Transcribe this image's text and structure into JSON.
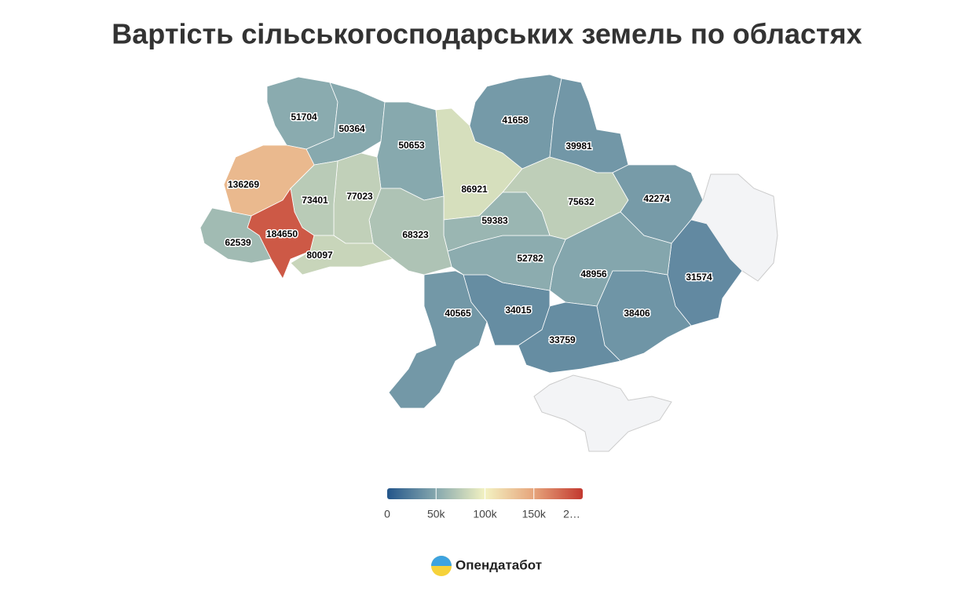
{
  "chart_data": {
    "type": "choropleth",
    "title": "Вартість сільськогосподарських земель по областях",
    "values": [
      51704,
      50364,
      50653,
      86921,
      41658,
      39981,
      75632,
      42274,
      31574,
      38406,
      48956,
      33759,
      34015,
      40565,
      52782,
      59383,
      68323,
      77023,
      73401,
      136269,
      184650,
      80097,
      62539
    ],
    "colorscale": [
      [
        0,
        "#23558a"
      ],
      [
        0.25,
        "#86a8ae"
      ],
      [
        0.5,
        "#f3f2c2"
      ],
      [
        0.75,
        "#e6a47b"
      ],
      [
        1,
        "#c2382f"
      ]
    ],
    "clim": [
      0,
      200000
    ],
    "cticks": [
      0,
      {
        "value": 50000,
        "label": "50k"
      },
      {
        "value": 100000,
        "label": "100k"
      },
      {
        "value": 150000,
        "label": "150k"
      },
      {
        "value": 200000,
        "label": "2…"
      }
    ],
    "no_data_color": "#f3f4f6",
    "source": "Опендатабот"
  }
}
